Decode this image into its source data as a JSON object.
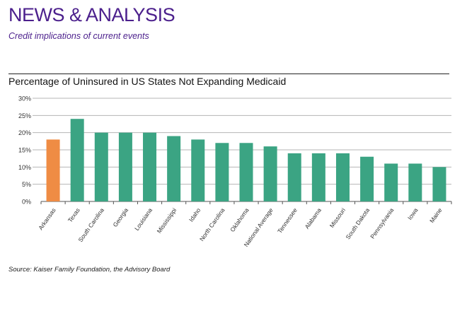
{
  "header": {
    "title": "NEWS & ANALYSIS",
    "subtitle": "Credit implications of current events"
  },
  "chart_data": {
    "type": "bar",
    "title": "Percentage of Uninsured in US States Not Expanding Medicaid",
    "xlabel": "",
    "ylabel": "",
    "ylim": [
      0,
      30
    ],
    "yticks": [
      "0%",
      "5%",
      "10%",
      "15%",
      "20%",
      "25%",
      "30%"
    ],
    "grid": true,
    "categories": [
      "Arkansas",
      "Texas",
      "South Carolina",
      "Georgia",
      "Louisiana",
      "Mississippi",
      "Idaho",
      "North Carolina",
      "Oklahoma",
      "National Average",
      "Tennessee",
      "Alabama",
      "Missouri",
      "South Dakota",
      "Pennsylvania",
      "Iowa",
      "Maine"
    ],
    "values": [
      18,
      24,
      20,
      20,
      20,
      19,
      18,
      17,
      17,
      16,
      14,
      14,
      14,
      13,
      11,
      11,
      10
    ],
    "colors": {
      "highlight": "#ef8c44",
      "default": "#3ba483"
    },
    "highlight_index": 0
  },
  "source": "Source: Kaiser Family Foundation, the Advisory Board"
}
